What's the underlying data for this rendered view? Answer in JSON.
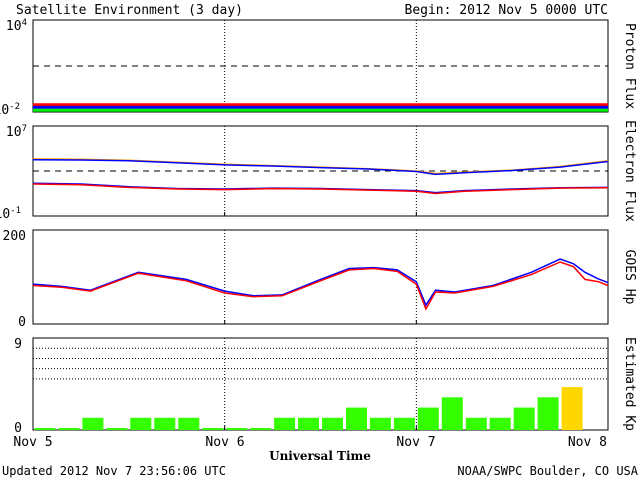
{
  "header": {
    "title": "Satellite Environment (3 day)",
    "begin": "Begin:  2012 Nov 5 0000 UTC"
  },
  "footer": {
    "updated": "Updated 2012 Nov  7 23:56:06 UTC",
    "source": "NOAA/SWPC Boulder, CO USA"
  },
  "xaxis": {
    "title": "Universal Time",
    "ticks": [
      "Nov 5",
      "Nov 6",
      "Nov 7",
      "Nov 8"
    ]
  },
  "colors": {
    "red": "#ff0000",
    "blue": "#0000ff",
    "green": "#00ee00",
    "orange": "#ffa500",
    "kp_normal": "#33ff00",
    "kp_storm": "#ffd700"
  },
  "chart_data": [
    {
      "type": "line",
      "ylabel": "Proton Flux",
      "ytick_top_base": "10",
      "ytick_top_exp": "4",
      "ytick_bottom_base": "10",
      "ytick_bottom_exp": "-2",
      "yscale": "log",
      "ylim": [
        0.01,
        10000
      ],
      "threshold": 10,
      "x_days": [
        0,
        0.5,
        1,
        1.5,
        2,
        2.5,
        3
      ],
      "series": [
        {
          "color": "red",
          "values": [
            0.03,
            0.03,
            0.03,
            0.03,
            0.03,
            0.03,
            0.03
          ]
        },
        {
          "color": "blue",
          "values": [
            0.02,
            0.02,
            0.02,
            0.02,
            0.02,
            0.02,
            0.02
          ]
        },
        {
          "color": "green",
          "values": [
            0.013,
            0.013,
            0.013,
            0.013,
            0.013,
            0.013,
            0.013
          ]
        }
      ]
    },
    {
      "type": "line",
      "ylabel": "Electron Flux",
      "ytick_top_base": "10",
      "ytick_top_exp": "7",
      "ytick_bottom_base": "10",
      "ytick_bottom_exp": "-1",
      "yscale": "log",
      "ylim": [
        0.1,
        10000000
      ],
      "threshold": 1000,
      "x_days": [
        0,
        0.25,
        0.5,
        0.75,
        1,
        1.25,
        1.5,
        1.75,
        2,
        2.1,
        2.25,
        2.5,
        2.75,
        3
      ],
      "series": [
        {
          "color": "orange",
          "values": [
            12000,
            11000,
            9000,
            6000,
            4000,
            3000,
            2200,
            1600,
            1000,
            600,
            800,
            1200,
            2500,
            8000
          ]
        },
        {
          "color": "blue",
          "values": [
            10000,
            9500,
            8000,
            5500,
            3500,
            2800,
            2000,
            1500,
            900,
            500,
            700,
            1100,
            2200,
            7000
          ]
        },
        {
          "color": "blue",
          "values": [
            80,
            70,
            40,
            28,
            25,
            30,
            28,
            22,
            18,
            12,
            18,
            25,
            32,
            35
          ]
        },
        {
          "color": "red",
          "values": [
            70,
            60,
            35,
            25,
            22,
            27,
            25,
            20,
            16,
            10,
            16,
            22,
            30,
            32
          ]
        }
      ]
    },
    {
      "type": "line",
      "ylabel": "GOES Hp",
      "ytick_top": "200",
      "ytick_bottom": "0",
      "ylim": [
        0,
        200
      ],
      "x_days": [
        0,
        0.15,
        0.3,
        0.55,
        0.8,
        1.0,
        1.15,
        1.3,
        1.5,
        1.65,
        1.78,
        1.9,
        2.0,
        2.05,
        2.1,
        2.2,
        2.4,
        2.6,
        2.75,
        2.82,
        2.88,
        2.95,
        3
      ],
      "series": [
        {
          "color": "blue",
          "values": [
            85,
            80,
            72,
            110,
            95,
            70,
            60,
            62,
            95,
            118,
            120,
            115,
            90,
            40,
            72,
            68,
            82,
            110,
            138,
            128,
            110,
            96,
            88
          ]
        },
        {
          "color": "red",
          "values": [
            82,
            78,
            70,
            108,
            92,
            66,
            58,
            60,
            92,
            115,
            118,
            112,
            85,
            32,
            68,
            66,
            80,
            105,
            132,
            122,
            95,
            90,
            82
          ]
        }
      ]
    },
    {
      "type": "bar",
      "ylabel": "Estimated Kp",
      "ytick_top": "9",
      "ytick_bottom": "0",
      "ylim": [
        0,
        9
      ],
      "values": [
        0,
        0,
        1,
        0,
        1,
        1,
        1,
        0,
        0,
        0,
        1,
        1,
        1,
        2,
        1,
        1,
        2,
        3,
        1,
        1,
        2,
        3,
        4
      ],
      "storm_threshold": 4
    }
  ]
}
